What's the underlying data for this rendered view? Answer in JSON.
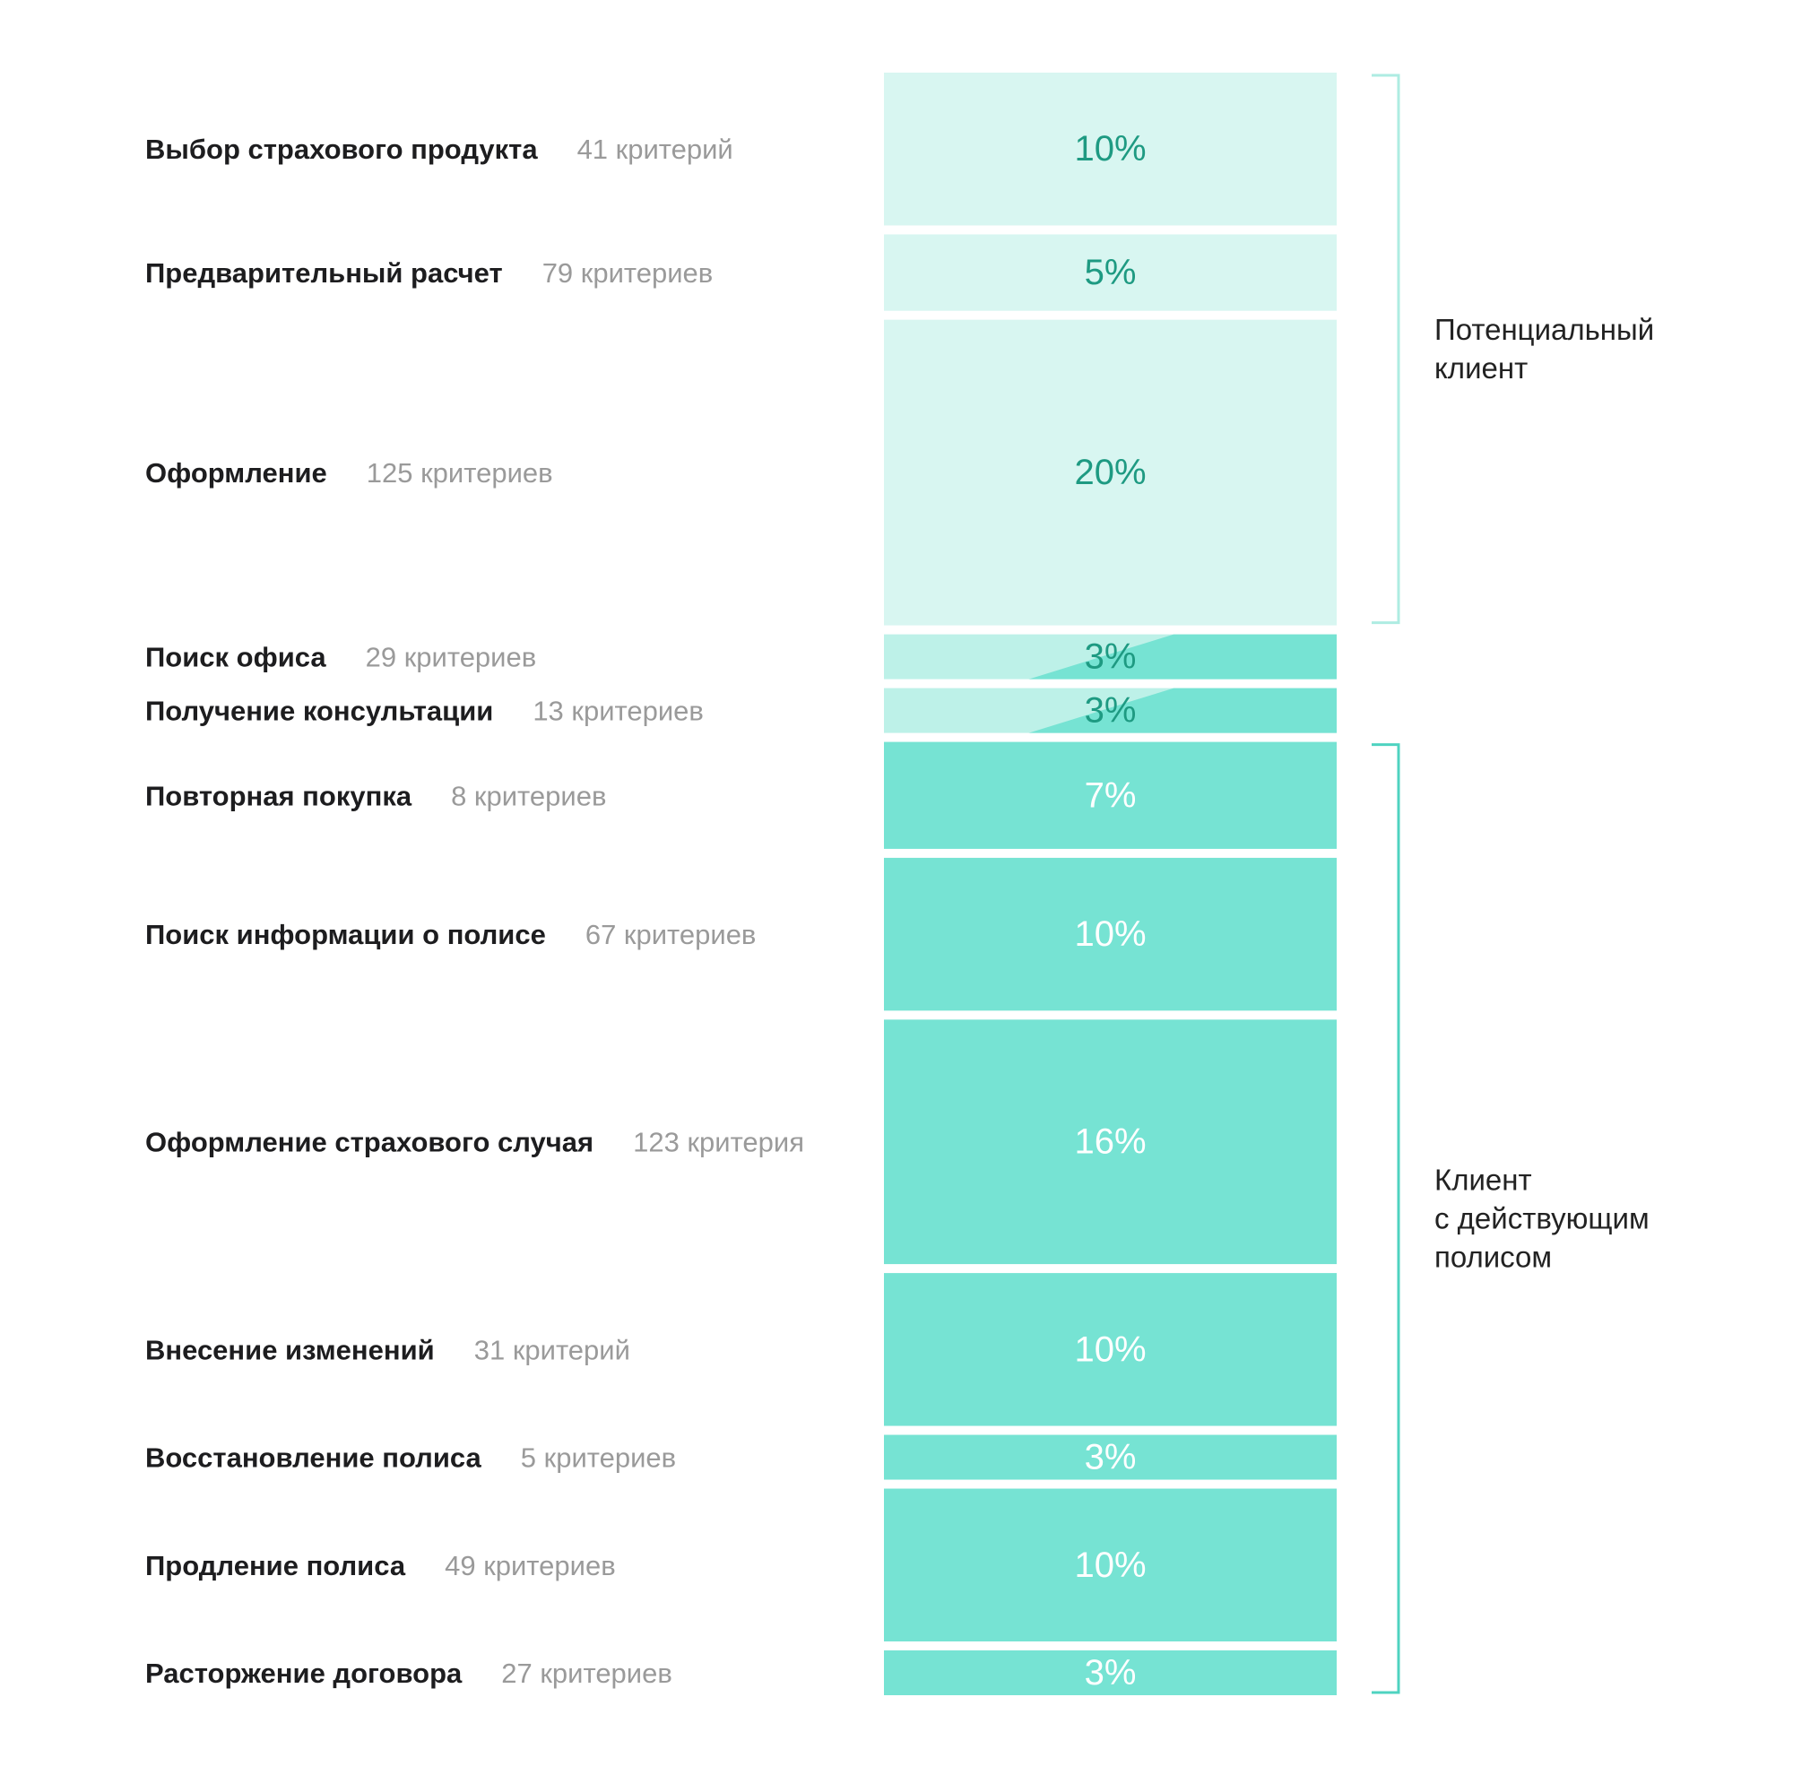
{
  "chart_data": {
    "type": "bar",
    "title": "",
    "xlabel": "",
    "ylabel": "",
    "categories": [
      "Выбор страхового продукта",
      "Предварительный расчет",
      "Оформление",
      "Поиск офиса",
      "Получение консультации",
      "Повторная покупка",
      "Поиск информации о полисе",
      "Оформление страхового случая",
      "Внесение изменений",
      "Восстановление полиса",
      "Продление полиса",
      "Расторжение договора"
    ],
    "stages": [
      {
        "name": "Выбор страхового продукта",
        "criteria": "41 критерий",
        "percent_label": "10%",
        "value": 10,
        "group": "potential"
      },
      {
        "name": "Предварительный расчет",
        "criteria": "79 критериев",
        "percent_label": "5%",
        "value": 5,
        "group": "potential"
      },
      {
        "name": "Оформление",
        "criteria": "125 критериев",
        "percent_label": "20%",
        "value": 20,
        "group": "potential"
      },
      {
        "name": "Поиск офиса",
        "criteria": "29 критериев",
        "percent_label": "3%",
        "value": 3,
        "group": "both"
      },
      {
        "name": "Получение консультации",
        "criteria": "13 критериев",
        "percent_label": "3%",
        "value": 3,
        "group": "both"
      },
      {
        "name": "Повторная покупка",
        "criteria": "8 критериев",
        "percent_label": "7%",
        "value": 7,
        "group": "active"
      },
      {
        "name": "Поиск информации о полисе",
        "criteria": "67 критериев",
        "percent_label": "10%",
        "value": 10,
        "group": "active"
      },
      {
        "name": "Оформление страхового случая",
        "criteria": "123 критерия",
        "percent_label": "16%",
        "value": 16,
        "group": "active"
      },
      {
        "name": "Внесение изменений",
        "criteria": "31 критерий",
        "percent_label": "10%",
        "value": 10,
        "group": "active"
      },
      {
        "name": "Восстановление полиса",
        "criteria": "5 критериев",
        "percent_label": "3%",
        "value": 3,
        "group": "active"
      },
      {
        "name": "Продление полиса",
        "criteria": "49 критериев",
        "percent_label": "10%",
        "value": 10,
        "group": "active"
      },
      {
        "name": "Расторжение договора",
        "criteria": "27 критериев",
        "percent_label": "3%",
        "value": 3,
        "group": "active"
      }
    ],
    "groups": [
      {
        "id": "potential",
        "label_lines": [
          "Потенциальный",
          "клиент"
        ],
        "first_stage": 0,
        "last_stage": 2
      },
      {
        "id": "active",
        "label_lines": [
          "Клиент",
          "с действующим",
          "полисом"
        ],
        "first_stage": 5,
        "last_stage": 11
      }
    ],
    "colors": {
      "potential_fill": "#d8f6f1",
      "potential_mix_fill": "#bdf1e8",
      "active_fill": "#76e3d3",
      "potential_text": "#1e9a82",
      "active_text": "#ffffff",
      "potential_bracket": "#aeece2",
      "active_bracket": "#4fd3c0"
    }
  }
}
